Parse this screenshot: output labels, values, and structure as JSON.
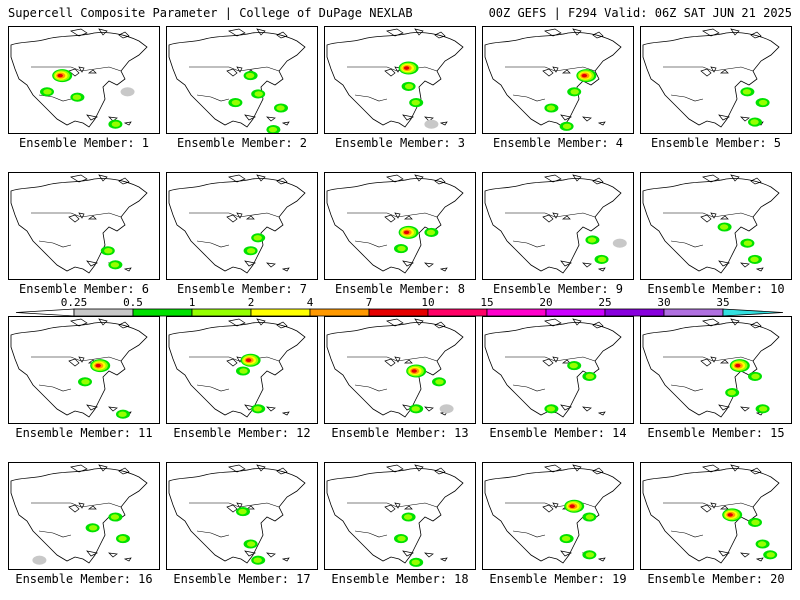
{
  "header": {
    "title": "Supercell Composite Parameter | College of DuPage NEXLAB",
    "run_info": "00Z GEFS | F294 Valid: 06Z SAT JUN 21 2025"
  },
  "members": [
    {
      "label": "Ensemble Member: 1",
      "blobs": [
        [
          0.35,
          0.45,
          1
        ],
        [
          0.25,
          0.6,
          0
        ],
        [
          0.45,
          0.65,
          0
        ],
        [
          0.7,
          0.9,
          0
        ],
        [
          0.78,
          0.6,
          -1
        ]
      ]
    },
    {
      "label": "Ensemble Member: 2",
      "blobs": [
        [
          0.55,
          0.45,
          0
        ],
        [
          0.6,
          0.62,
          0
        ],
        [
          0.75,
          0.75,
          0
        ],
        [
          0.45,
          0.7,
          0
        ],
        [
          0.7,
          0.95,
          0
        ]
      ]
    },
    {
      "label": "Ensemble Member: 3",
      "blobs": [
        [
          0.55,
          0.38,
          1
        ],
        [
          0.55,
          0.55,
          0
        ],
        [
          0.6,
          0.7,
          0
        ],
        [
          0.7,
          0.9,
          -1
        ]
      ]
    },
    {
      "label": "Ensemble Member: 4",
      "blobs": [
        [
          0.68,
          0.45,
          1
        ],
        [
          0.6,
          0.6,
          0
        ],
        [
          0.45,
          0.75,
          0
        ],
        [
          0.55,
          0.92,
          0
        ]
      ]
    },
    {
      "label": "Ensemble Member: 5",
      "blobs": [
        [
          0.7,
          0.6,
          0
        ],
        [
          0.8,
          0.7,
          0
        ],
        [
          0.75,
          0.88,
          0
        ]
      ]
    },
    {
      "label": "Ensemble Member: 6",
      "blobs": [
        [
          0.7,
          0.85,
          0
        ],
        [
          0.65,
          0.72,
          0
        ]
      ]
    },
    {
      "label": "Ensemble Member: 7",
      "blobs": [
        [
          0.6,
          0.6,
          0
        ],
        [
          0.55,
          0.72,
          0
        ]
      ]
    },
    {
      "label": "Ensemble Member: 8",
      "blobs": [
        [
          0.55,
          0.55,
          1
        ],
        [
          0.5,
          0.7,
          0
        ],
        [
          0.7,
          0.55,
          0
        ]
      ]
    },
    {
      "label": "Ensemble Member: 9",
      "blobs": [
        [
          0.72,
          0.62,
          0
        ],
        [
          0.78,
          0.8,
          0
        ],
        [
          0.9,
          0.65,
          -1
        ]
      ]
    },
    {
      "label": "Ensemble Member: 10",
      "blobs": [
        [
          0.55,
          0.5,
          0
        ],
        [
          0.7,
          0.65,
          0
        ],
        [
          0.75,
          0.8,
          0
        ]
      ]
    },
    {
      "label": "Ensemble Member: 11",
      "blobs": [
        [
          0.6,
          0.45,
          1
        ],
        [
          0.5,
          0.6,
          0
        ],
        [
          0.75,
          0.9,
          0
        ]
      ]
    },
    {
      "label": "Ensemble Member: 12",
      "blobs": [
        [
          0.55,
          0.4,
          1
        ],
        [
          0.5,
          0.5,
          0
        ],
        [
          0.6,
          0.85,
          0
        ]
      ]
    },
    {
      "label": "Ensemble Member: 13",
      "blobs": [
        [
          0.6,
          0.5,
          1
        ],
        [
          0.75,
          0.6,
          0
        ],
        [
          0.6,
          0.85,
          0
        ],
        [
          0.8,
          0.85,
          -1
        ]
      ]
    },
    {
      "label": "Ensemble Member: 14",
      "blobs": [
        [
          0.6,
          0.45,
          0
        ],
        [
          0.7,
          0.55,
          0
        ],
        [
          0.45,
          0.85,
          0
        ]
      ]
    },
    {
      "label": "Ensemble Member: 15",
      "blobs": [
        [
          0.65,
          0.45,
          1
        ],
        [
          0.75,
          0.55,
          0
        ],
        [
          0.6,
          0.7,
          0
        ],
        [
          0.8,
          0.85,
          0
        ]
      ]
    },
    {
      "label": "Ensemble Member: 16",
      "blobs": [
        [
          0.7,
          0.5,
          0
        ],
        [
          0.55,
          0.6,
          0
        ],
        [
          0.75,
          0.7,
          0
        ],
        [
          0.2,
          0.9,
          -1
        ]
      ]
    },
    {
      "label": "Ensemble Member: 17",
      "blobs": [
        [
          0.5,
          0.45,
          0
        ],
        [
          0.55,
          0.75,
          0
        ],
        [
          0.6,
          0.9,
          0
        ]
      ]
    },
    {
      "label": "Ensemble Member: 18",
      "blobs": [
        [
          0.55,
          0.5,
          0
        ],
        [
          0.5,
          0.7,
          0
        ],
        [
          0.6,
          0.92,
          0
        ]
      ]
    },
    {
      "label": "Ensemble Member: 19",
      "blobs": [
        [
          0.6,
          0.4,
          1
        ],
        [
          0.7,
          0.5,
          0
        ],
        [
          0.55,
          0.7,
          0
        ],
        [
          0.7,
          0.85,
          0
        ]
      ]
    },
    {
      "label": "Ensemble Member: 20",
      "blobs": [
        [
          0.6,
          0.48,
          1
        ],
        [
          0.75,
          0.55,
          0
        ],
        [
          0.8,
          0.75,
          0
        ],
        [
          0.85,
          0.85,
          0
        ]
      ]
    }
  ],
  "colorbar": {
    "ticks": [
      "0.25",
      "0.5",
      "1",
      "2",
      "4",
      "7",
      "10",
      "15",
      "20",
      "25",
      "30",
      "35"
    ],
    "colors": [
      "#ffffff",
      "#c8c8c8",
      "#00e100",
      "#96ff00",
      "#ffff00",
      "#ff9900",
      "#e60000",
      "#ff0066",
      "#ff00cc",
      "#cc00ff",
      "#8800dd",
      "#b070e0",
      "#33e0e0"
    ]
  },
  "legend_note": "blob intensity: -1 gray (0.25-0.5), 0 green/yellow, 1 orange/red core"
}
